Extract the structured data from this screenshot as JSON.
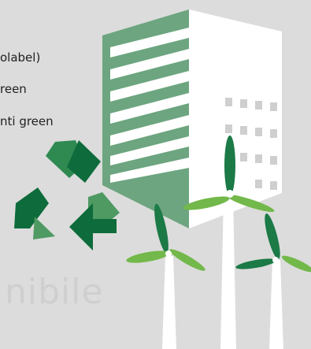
{
  "lines": [
    "olabel)",
    "reen",
    "nti green"
  ],
  "faded_text": "nibile",
  "icons": {
    "building": "green-building-icon",
    "recycle": "recycle-arrows-icon",
    "turbines": "wind-turbine-icon"
  },
  "colors": {
    "background": "#dcdcdc",
    "building_green": "#6ca57f",
    "building_white": "#ffffff",
    "recycle_dark": "#0e6b3b",
    "recycle_mid": "#2f8a52",
    "recycle_light": "#4f9a63",
    "turbine_green": "#73b84a",
    "turbine_dark": "#1b7a46"
  }
}
